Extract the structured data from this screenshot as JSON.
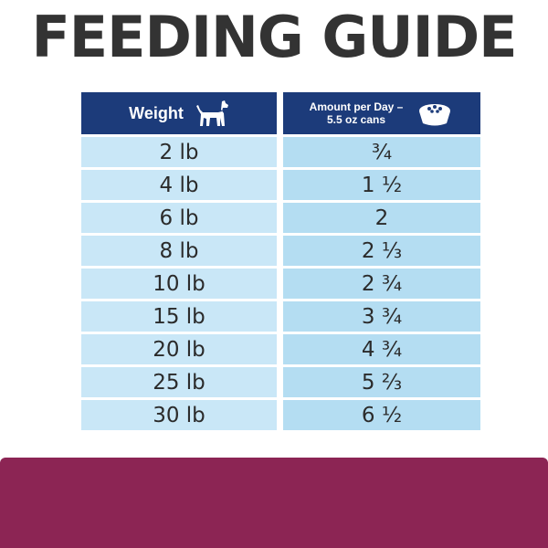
{
  "title": "FEEDING GUIDE",
  "table": {
    "header": {
      "weight_label": "Weight",
      "amount_line1": "Amount per Day –",
      "amount_line2": "5.5 oz cans",
      "weight_icon": "dog-icon",
      "amount_icon": "food-bowl-icon"
    },
    "rows": [
      {
        "weight": "2 lb",
        "amount": "¾"
      },
      {
        "weight": "4 lb",
        "amount": "1 ½"
      },
      {
        "weight": "6 lb",
        "amount": "2"
      },
      {
        "weight": "8 lb",
        "amount": "2 ⅓"
      },
      {
        "weight": "10 lb",
        "amount": "2 ¾"
      },
      {
        "weight": "15 lb",
        "amount": "3 ¾"
      },
      {
        "weight": "20 lb",
        "amount": "4 ¾"
      },
      {
        "weight": "25 lb",
        "amount": "5 ⅔"
      },
      {
        "weight": "30 lb",
        "amount": "6 ½"
      }
    ]
  },
  "colors": {
    "title": "#333333",
    "header_bg": "#1c3b7a",
    "weight_cell_bg": "#c9e7f7",
    "amount_cell_bg": "#b4ddf2",
    "bottom_band": "#8c2554"
  }
}
